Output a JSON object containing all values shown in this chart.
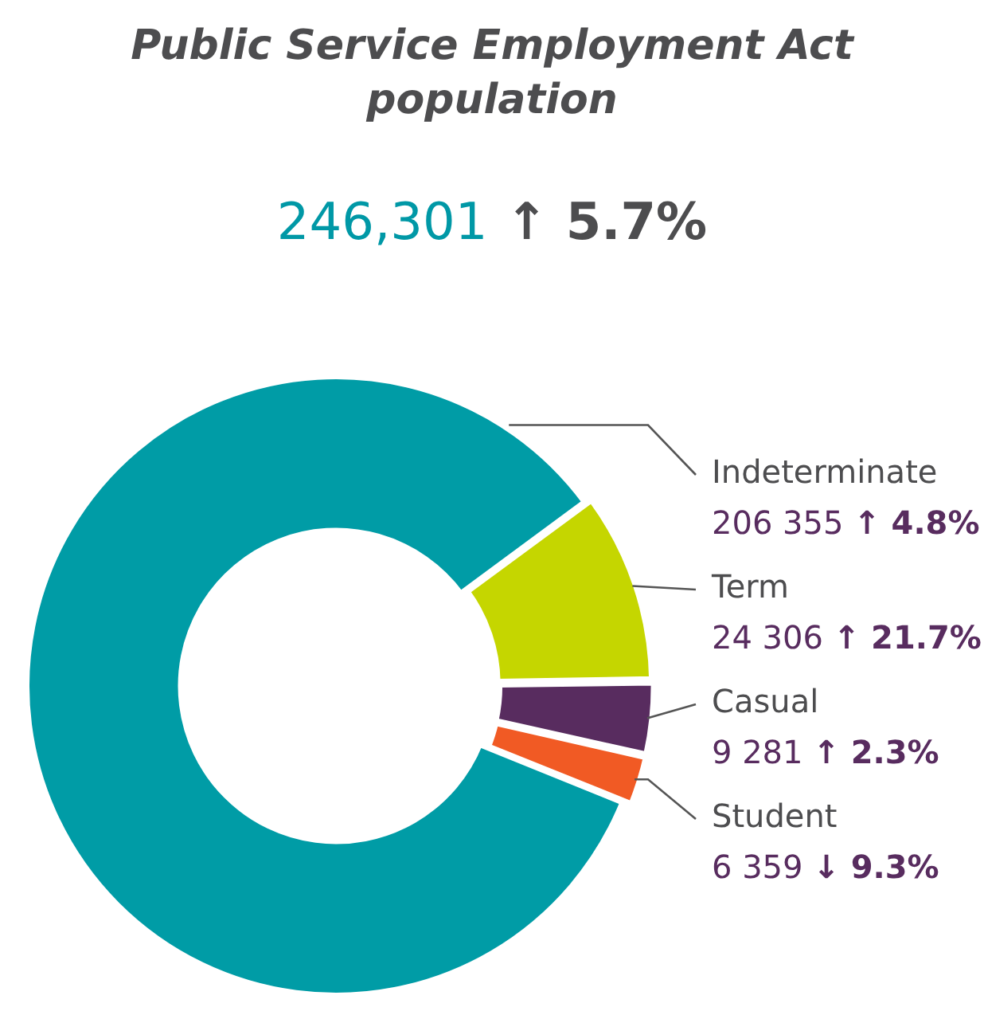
{
  "chart_data": {
    "type": "donut",
    "title": "Public Service Employment Act population",
    "subtitle": "246,301 ↑ 5.7%",
    "categories": [
      "Indeterminate",
      "Term",
      "Casual",
      "Student"
    ],
    "values": [
      206355,
      24306,
      9281,
      6359
    ],
    "colors": [
      "#009ca6",
      "#c5d600",
      "#582c5f",
      "#f15a24"
    ],
    "value_labels": [
      "206 355",
      "24 306",
      "9 281",
      "6 359"
    ],
    "annotations": [
      {
        "text": "↑ 4.8%",
        "x": "Indeterminate"
      },
      {
        "text": "↑ 21.7%",
        "x": "Term"
      },
      {
        "text": "↑ 2.3%",
        "x": "Casual"
      },
      {
        "text": "↓ 9.3%",
        "x": "Student"
      }
    ],
    "legend": false
  }
}
